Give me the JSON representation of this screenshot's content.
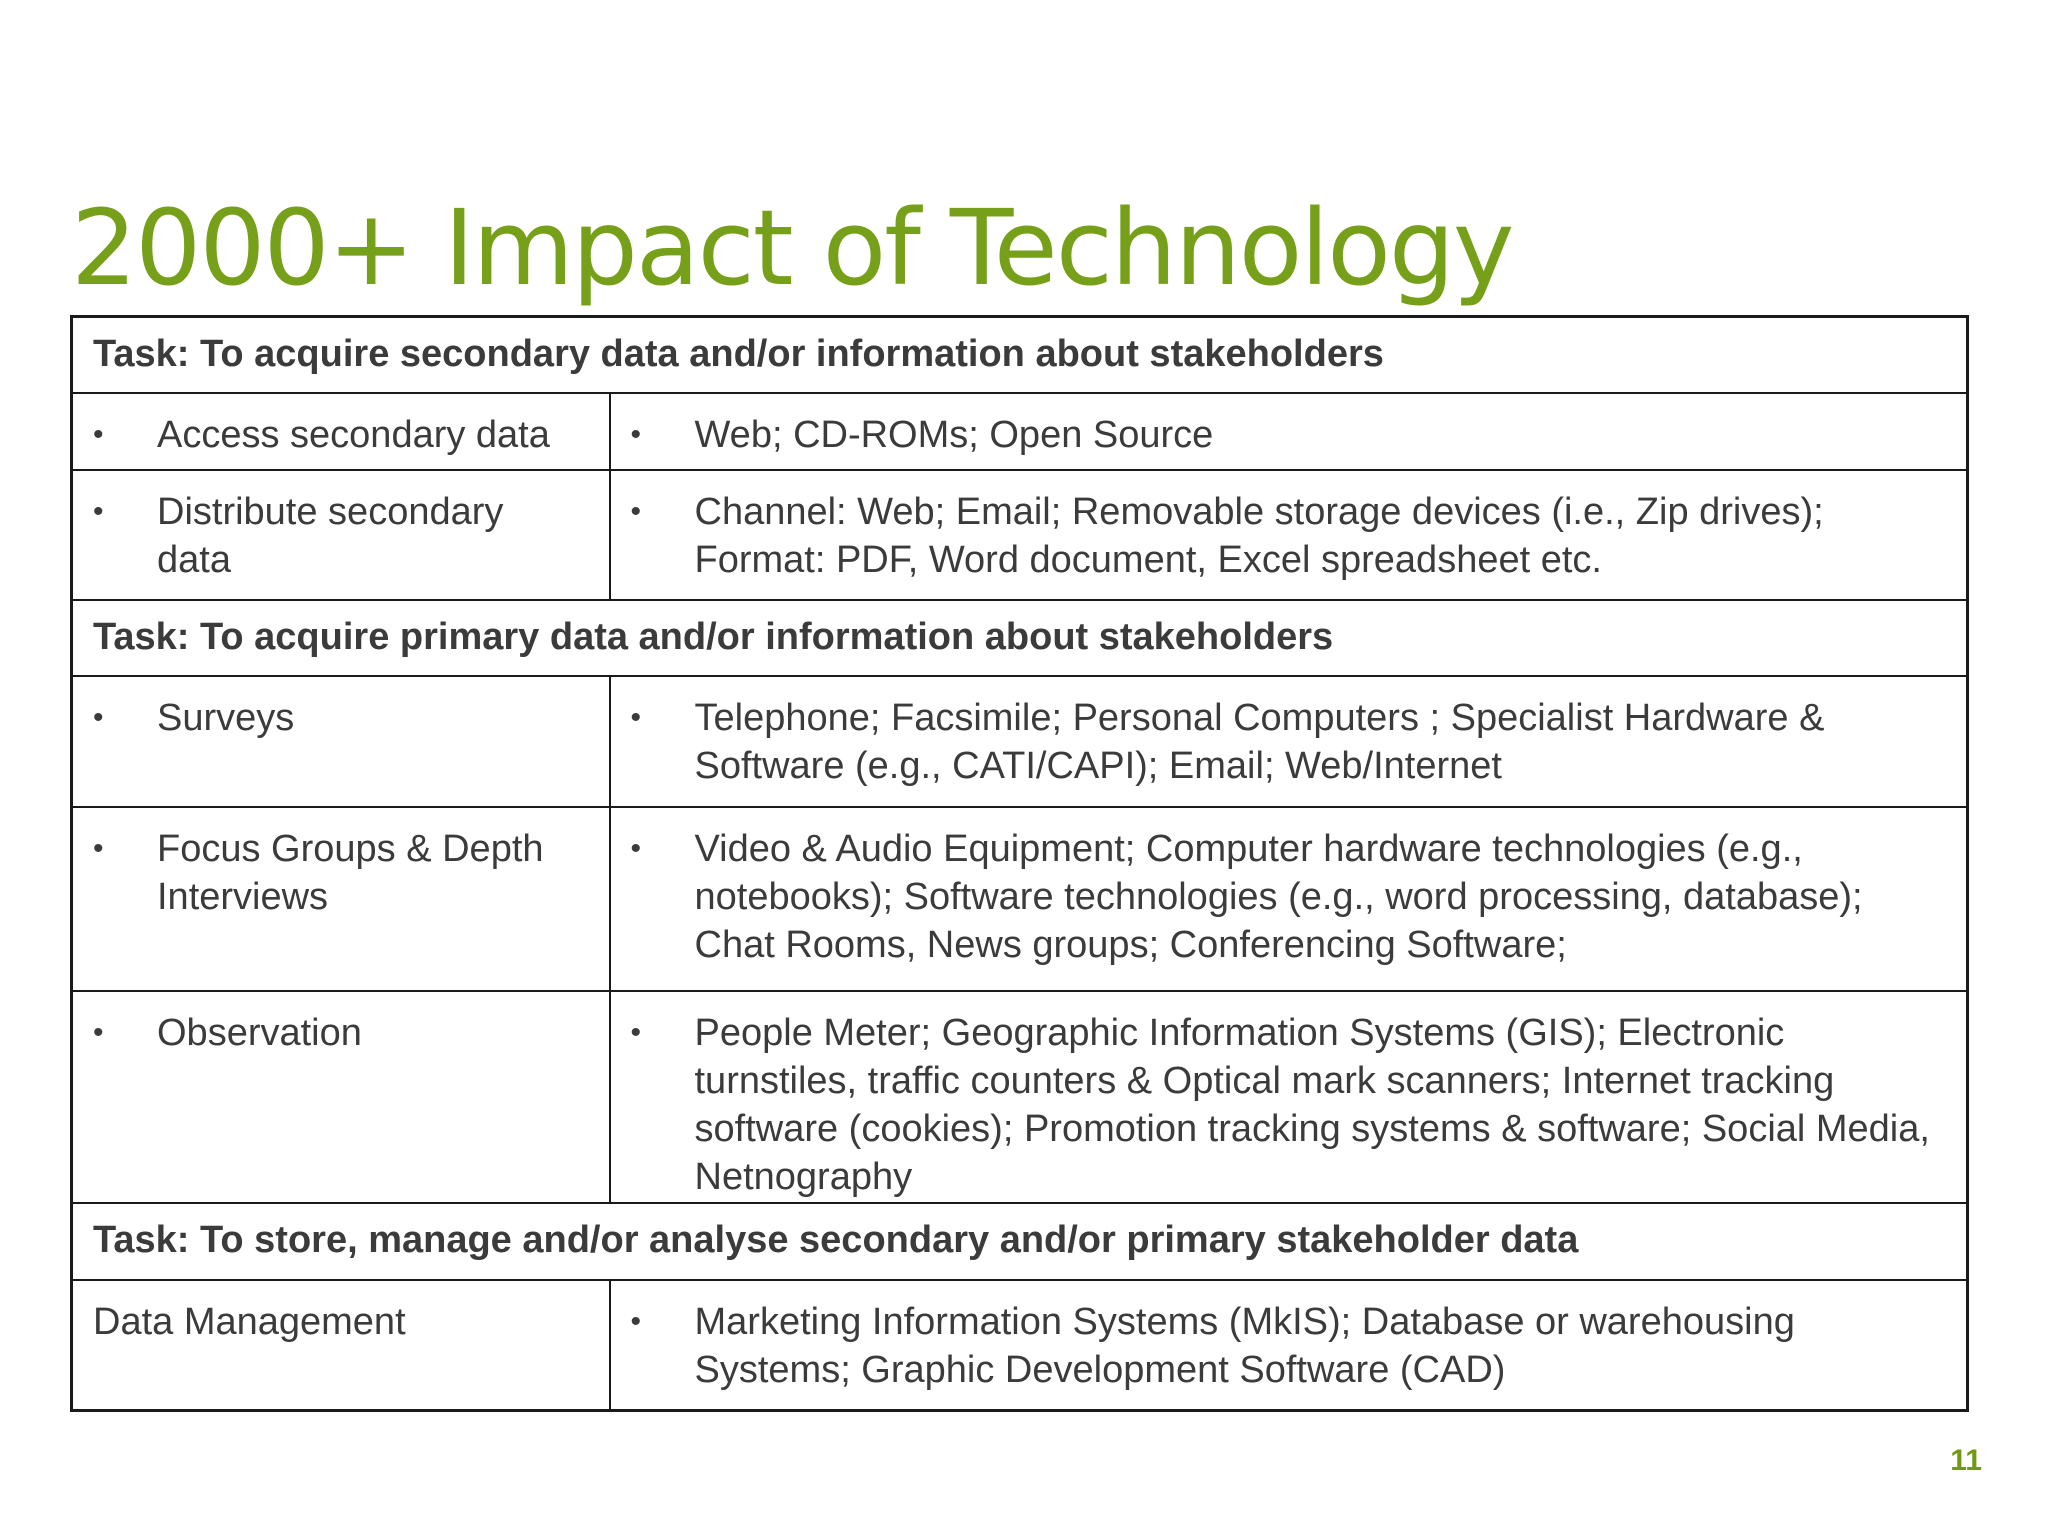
{
  "slide": {
    "title": "2000+ Impact of Technology",
    "page_number": "11",
    "bullet_symbol": "•",
    "accent_color": "#76a019",
    "text_color": "#3b3b3b"
  },
  "table": {
    "sections": [
      {
        "task": "Task: To acquire secondary data and/or information about stakeholders",
        "rows": [
          {
            "activity": "Access secondary data",
            "technology": "Web; CD-ROMs; Open Source"
          },
          {
            "activity": "Distribute secondary data",
            "technology": "Channel: Web; Email; Removable storage devices (i.e., Zip drives); Format: PDF, Word document, Excel spreadsheet etc."
          }
        ]
      },
      {
        "task": "Task: To acquire primary data and/or information about stakeholders",
        "rows": [
          {
            "activity": "Surveys",
            "technology": "Telephone; Facsimile; Personal Computers ; Specialist Hardware & Software (e.g., CATI/CAPI); Email; Web/Internet"
          },
          {
            "activity": "Focus Groups & Depth Interviews",
            "technology": "Video & Audio Equipment; Computer hardware technologies (e.g., notebooks); Software technologies (e.g., word processing, database); Chat Rooms, News groups; Conferencing Software;"
          },
          {
            "activity": "Observation",
            "technology": "People Meter; Geographic Information Systems (GIS); Electronic turnstiles, traffic counters & Optical mark scanners; Internet tracking software (cookies); Promotion tracking systems & software; Social Media, Netnography"
          }
        ]
      },
      {
        "task": "Task: To store, manage and/or analyse secondary and/or primary stakeholder data",
        "rows": [
          {
            "activity": "Data Management",
            "technology": "Marketing Information Systems (MkIS); Database or warehousing Systems; Graphic Development Software (CAD)"
          }
        ]
      }
    ]
  }
}
